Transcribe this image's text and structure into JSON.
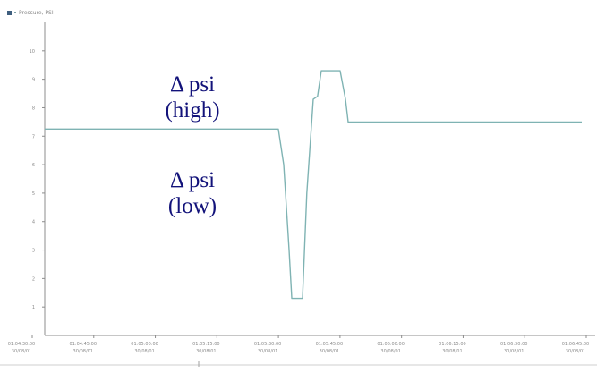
{
  "chart_data": {
    "type": "line",
    "title": "",
    "legend": {
      "label": "Pressure, PSI",
      "placement": "top-left",
      "color": "#3f5f7f"
    },
    "xlabel": "",
    "ylabel": "",
    "ylim": [
      0,
      11
    ],
    "y_tick_labels": [
      "1",
      "2",
      "3",
      "4",
      "5",
      "6",
      "7",
      "8",
      "9",
      "10"
    ],
    "x_tick_labels": [
      [
        "01:04:30:00",
        "30/08/01"
      ],
      [
        "01:04:45:00",
        "30/08/01"
      ],
      [
        "01:05:00:00",
        "30/08/01"
      ],
      [
        "01:05:15:00",
        "30/08/01"
      ],
      [
        "01:05:30:00",
        "30/08/01"
      ],
      [
        "01:05:45:00",
        "30/08/01"
      ],
      [
        "01:06:00:00",
        "30/08/01"
      ],
      [
        "01:06:15:00",
        "30/08/01"
      ],
      [
        "01:06:30:00",
        "30/08/01"
      ],
      [
        "01:06:45:00",
        "30/08/01"
      ]
    ],
    "grid": false,
    "line_color": "#7fb3b3",
    "series": [
      {
        "name": "Pressure, PSI",
        "x": [
          0,
          0.435,
          0.445,
          0.455,
          0.46,
          0.47,
          0.48,
          0.488,
          0.5,
          0.508,
          0.515,
          0.53,
          0.54,
          0.55,
          0.56,
          0.565,
          0.58,
          0.6,
          1
        ],
        "y": [
          7.25,
          7.25,
          6.0,
          3.0,
          1.3,
          1.3,
          1.3,
          5.0,
          8.3,
          8.4,
          9.3,
          9.3,
          9.3,
          9.3,
          8.3,
          7.5,
          7.5,
          7.5,
          7.5
        ]
      }
    ],
    "annotations": [
      {
        "line1": "Δ psi",
        "line2": "(high)"
      },
      {
        "line1": "Δ psi",
        "line2": "(low)"
      }
    ]
  }
}
